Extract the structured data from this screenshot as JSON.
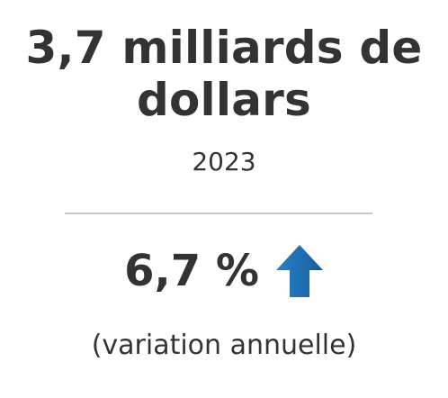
{
  "headline": {
    "line1": "3,7 milliards de",
    "line2": "dollars"
  },
  "year": "2023",
  "change": {
    "value": "6,7 %",
    "direction": "up",
    "icon": "arrow-up-icon",
    "icon_color": "#1f6fb3"
  },
  "caption": "(variation annuelle)"
}
